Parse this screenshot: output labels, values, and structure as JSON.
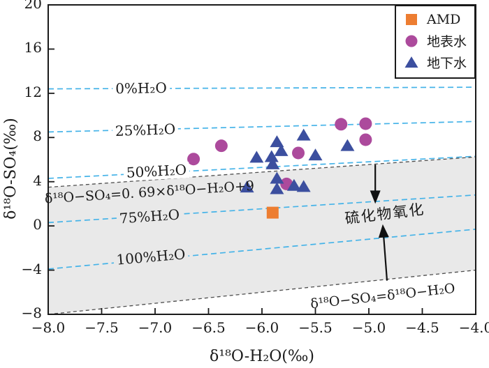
{
  "figure": {
    "bg": "#ffffff",
    "axis_color": "#1a1a1a",
    "mixing_line_color": "#45b3e8",
    "boundary_line_color": "#4d4d4d",
    "arrow_color": "#111111",
    "text_color": "#1a1a1a"
  },
  "chart_data": {
    "type": "scatter",
    "xlabel": "δ¹⁸O-H₂O(‰)",
    "ylabel": "δ¹⁸O-SO₄(‰)",
    "xlim": [
      -8.0,
      -4.0
    ],
    "ylim": [
      -8,
      20
    ],
    "grid": false,
    "legend_position": "top-right",
    "x_ticks": [
      -8.0,
      -7.5,
      -7.0,
      -6.5,
      -6.0,
      -5.5,
      -5.0,
      -4.5,
      -4.0
    ],
    "x_tick_labels": [
      "−8.0",
      "−7.5",
      "−7.0",
      "−6.5",
      "−6.0",
      "−5.5",
      "−5.0",
      "−4.5",
      "−4.0"
    ],
    "y_ticks": [
      20,
      16,
      12,
      8,
      4,
      0,
      -4,
      -8
    ],
    "y_tick_labels": [
      "20",
      "16",
      "12",
      "8",
      "4",
      "0",
      "−4",
      "−8"
    ],
    "series": [
      {
        "name": "AMD",
        "slug": "amd",
        "marker": "square",
        "color": "#ed7d31",
        "points": [
          [
            -5.9,
            1.2
          ]
        ]
      },
      {
        "name": "地表水",
        "slug": "surface-water",
        "marker": "circle",
        "color": "#ac4a9c",
        "points": [
          [
            -6.64,
            6.05
          ],
          [
            -6.38,
            7.25
          ],
          [
            -5.66,
            6.6
          ],
          [
            -5.26,
            9.2
          ],
          [
            -5.03,
            9.25
          ],
          [
            -5.03,
            7.8
          ],
          [
            -5.77,
            3.8
          ]
        ]
      },
      {
        "name": "地下水",
        "slug": "groundwater",
        "marker": "triangle",
        "color": "#3c4f9f",
        "points": [
          [
            -5.86,
            7.6
          ],
          [
            -5.61,
            8.2
          ],
          [
            -5.82,
            6.8
          ],
          [
            -6.05,
            6.2
          ],
          [
            -5.91,
            6.25
          ],
          [
            -5.9,
            5.6
          ],
          [
            -5.5,
            6.4
          ],
          [
            -5.2,
            7.25
          ],
          [
            -5.86,
            4.3
          ],
          [
            -5.86,
            3.35
          ],
          [
            -5.7,
            3.65
          ],
          [
            -5.61,
            3.55
          ],
          [
            -6.14,
            3.5
          ]
        ]
      }
    ],
    "mixing_lines": [
      {
        "label": "0%H₂O",
        "start": [
          -8,
          12.4
        ],
        "end": [
          -4,
          12.55
        ],
        "label_at": [
          -7.13,
          12.43
        ],
        "label_rot": -1,
        "label_bg": "#ffffff"
      },
      {
        "label": "25%H₂O",
        "start": [
          -8,
          8.5
        ],
        "end": [
          -4,
          9.45
        ],
        "label_at": [
          -7.09,
          8.65
        ],
        "label_rot": -2,
        "label_bg": "#ffffff"
      },
      {
        "label": "50%H₂O",
        "start": [
          -8,
          4.3
        ],
        "end": [
          -4,
          6.3
        ],
        "label_at": [
          -6.99,
          4.93
        ],
        "label_rot": -3,
        "label_bg": "#ffffff"
      },
      {
        "label": "75%H₂O",
        "start": [
          -8,
          0.3
        ],
        "end": [
          -4,
          2.8
        ],
        "label_at": [
          -7.05,
          0.83
        ],
        "label_rot": -4,
        "label_bg": "#e9e9e9"
      },
      {
        "label": "100%H₂O",
        "start": [
          -8,
          -3.9
        ],
        "end": [
          -4,
          -0.3
        ],
        "label_at": [
          -7.04,
          -2.83
        ],
        "label_rot": -5,
        "label_bg": "#e9e9e9"
      }
    ],
    "band": {
      "fill": "#e9e9e9",
      "upper": {
        "start": [
          -8,
          3.5
        ],
        "end": [
          -4,
          6.24
        ]
      },
      "lower": {
        "start": [
          -8,
          -8.0
        ],
        "end": [
          -4,
          -4.0
        ]
      }
    },
    "annotations": [
      {
        "id": "upper-line-equation",
        "text": "δ¹⁸O−SO₄=0. 69×δ¹⁸O−H₂O+9",
        "at": [
          -7.05,
          3.0
        ],
        "rot": -3.6
      },
      {
        "id": "one-to-one-equation",
        "text": "δ¹⁸O−SO₄=δ¹⁸O−H₂O",
        "at": [
          -4.87,
          -6.4
        ],
        "rot": -6.3
      },
      {
        "id": "sulfide-oxidation",
        "text": "硫化物氧化",
        "at": [
          -4.85,
          1.05
        ],
        "rot": -7
      }
    ],
    "arrows": [
      {
        "id": "oxidation-down-arrow",
        "from": [
          -4.94,
          5.55
        ],
        "to": [
          -4.94,
          2.0
        ]
      },
      {
        "id": "oxidation-up-arrow",
        "from": [
          -4.83,
          -4.95
        ],
        "to": [
          -4.87,
          0.15
        ]
      }
    ]
  }
}
